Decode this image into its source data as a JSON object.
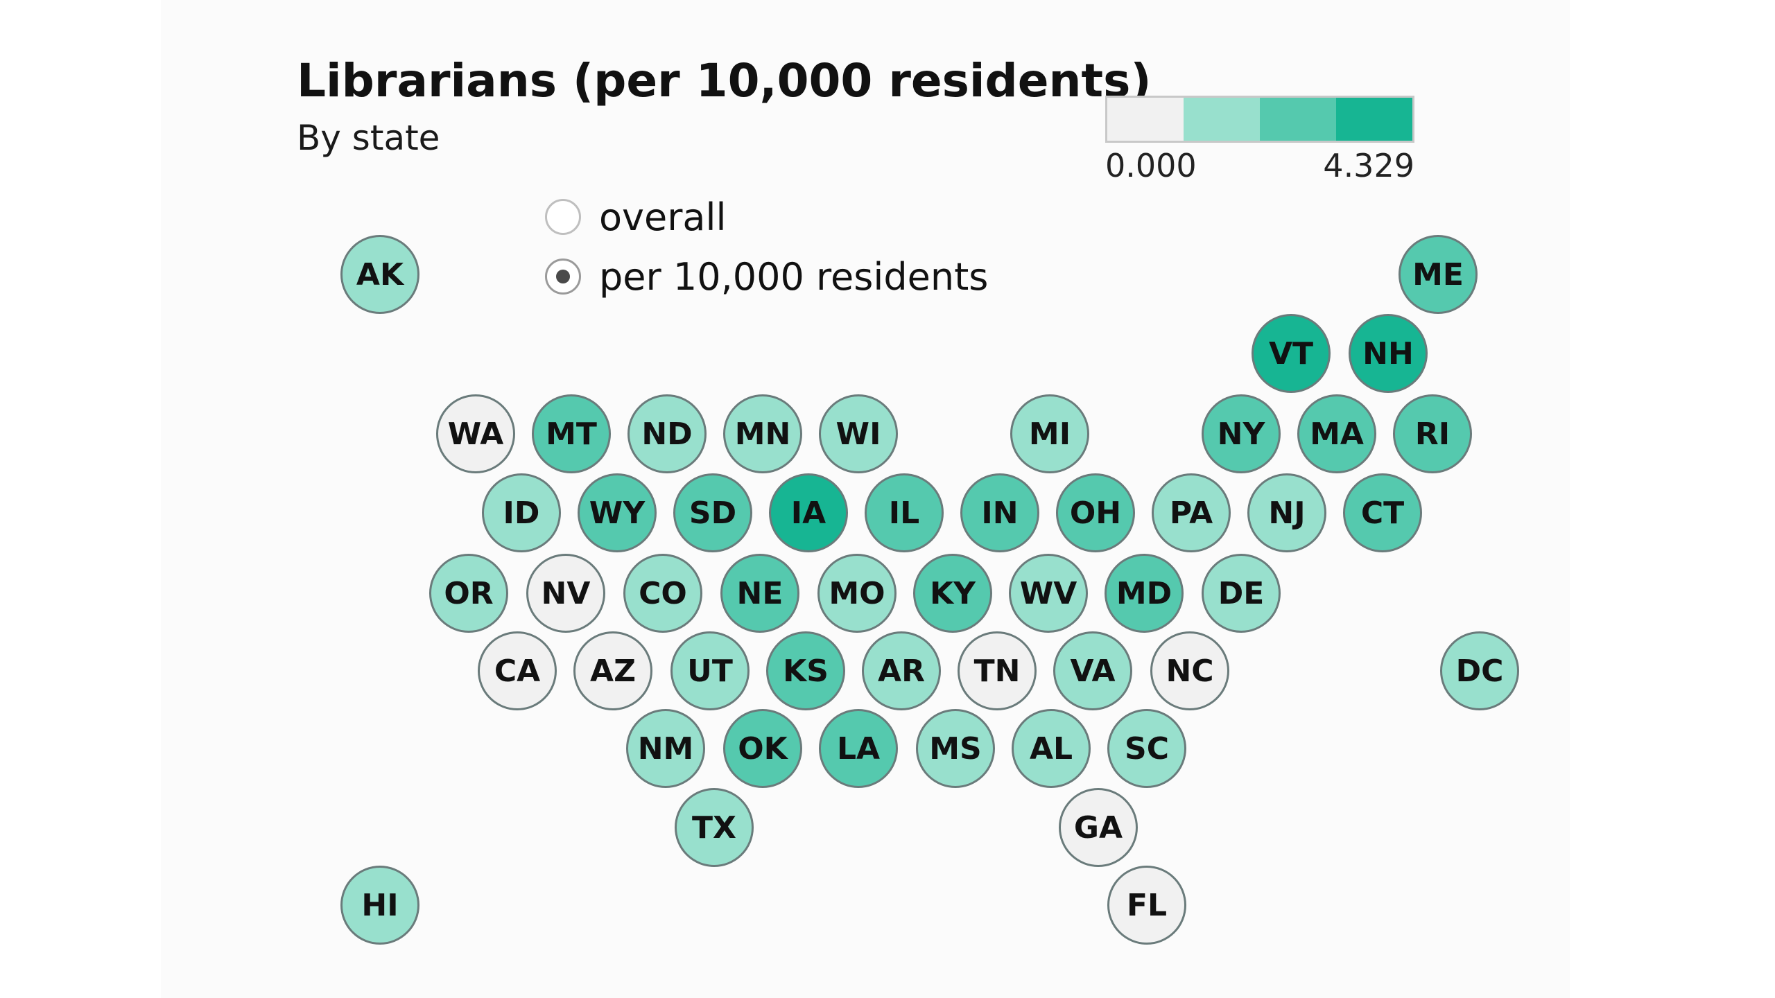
{
  "title": "Librarians (per 10,000 residents)",
  "subtitle": "By state",
  "legend": {
    "min": "0.000",
    "max": "4.329",
    "colors": [
      "#f1f1f1",
      "#98e0cd",
      "#55c9ae",
      "#17b593"
    ]
  },
  "toggle": {
    "options": [
      {
        "label": "overall",
        "checked": false
      },
      {
        "label": "per 10,000 residents",
        "checked": true
      }
    ]
  },
  "states": [
    {
      "abbr": "AK",
      "bin": 1
    },
    {
      "abbr": "ME",
      "bin": 2
    },
    {
      "abbr": "VT",
      "bin": 3
    },
    {
      "abbr": "NH",
      "bin": 3
    },
    {
      "abbr": "WA",
      "bin": 0
    },
    {
      "abbr": "MT",
      "bin": 2
    },
    {
      "abbr": "ND",
      "bin": 1
    },
    {
      "abbr": "MN",
      "bin": 1
    },
    {
      "abbr": "WI",
      "bin": 1
    },
    {
      "abbr": "MI",
      "bin": 1
    },
    {
      "abbr": "NY",
      "bin": 2
    },
    {
      "abbr": "MA",
      "bin": 2
    },
    {
      "abbr": "RI",
      "bin": 2
    },
    {
      "abbr": "ID",
      "bin": 1
    },
    {
      "abbr": "WY",
      "bin": 2
    },
    {
      "abbr": "SD",
      "bin": 2
    },
    {
      "abbr": "IA",
      "bin": 3
    },
    {
      "abbr": "IL",
      "bin": 2
    },
    {
      "abbr": "IN",
      "bin": 2
    },
    {
      "abbr": "OH",
      "bin": 2
    },
    {
      "abbr": "PA",
      "bin": 1
    },
    {
      "abbr": "NJ",
      "bin": 1
    },
    {
      "abbr": "CT",
      "bin": 2
    },
    {
      "abbr": "OR",
      "bin": 1
    },
    {
      "abbr": "NV",
      "bin": 0
    },
    {
      "abbr": "CO",
      "bin": 1
    },
    {
      "abbr": "NE",
      "bin": 2
    },
    {
      "abbr": "MO",
      "bin": 1
    },
    {
      "abbr": "KY",
      "bin": 2
    },
    {
      "abbr": "WV",
      "bin": 1
    },
    {
      "abbr": "MD",
      "bin": 2
    },
    {
      "abbr": "DE",
      "bin": 1
    },
    {
      "abbr": "CA",
      "bin": 0
    },
    {
      "abbr": "AZ",
      "bin": 0
    },
    {
      "abbr": "UT",
      "bin": 1
    },
    {
      "abbr": "KS",
      "bin": 2
    },
    {
      "abbr": "AR",
      "bin": 1
    },
    {
      "abbr": "TN",
      "bin": 0
    },
    {
      "abbr": "VA",
      "bin": 1
    },
    {
      "abbr": "NC",
      "bin": 0
    },
    {
      "abbr": "DC",
      "bin": 1
    },
    {
      "abbr": "NM",
      "bin": 1
    },
    {
      "abbr": "OK",
      "bin": 2
    },
    {
      "abbr": "LA",
      "bin": 2
    },
    {
      "abbr": "MS",
      "bin": 1
    },
    {
      "abbr": "AL",
      "bin": 1
    },
    {
      "abbr": "SC",
      "bin": 1
    },
    {
      "abbr": "TX",
      "bin": 1
    },
    {
      "abbr": "GA",
      "bin": 0
    },
    {
      "abbr": "HI",
      "bin": 1
    },
    {
      "abbr": "FL",
      "bin": 0
    }
  ]
}
